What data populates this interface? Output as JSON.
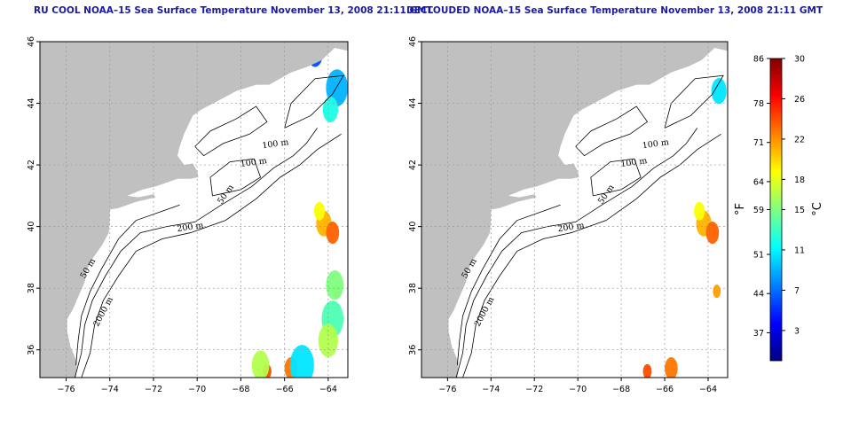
{
  "maps": [
    {
      "title": "RU COOL NOAA–15 Sea Surface Temperature November 13, 2008 21:11 GMT",
      "contour_labels": [
        "100 m",
        "100 m",
        "50 m",
        "200 m",
        "50 m",
        "2000 m"
      ]
    },
    {
      "title": "DECLOUDED NOAA–15 Sea Surface Temperature November 13, 2008 21:11 GMT",
      "contour_labels": [
        "100 m",
        "100 m",
        "50 m",
        "200 m",
        "50 m",
        "2000 m"
      ]
    }
  ],
  "chart_data": {
    "type": "heatmap",
    "x_ticks": [
      "−76",
      "−74",
      "−72",
      "−70",
      "−68",
      "−66",
      "−64"
    ],
    "y_ticks": [
      "36",
      "38",
      "40",
      "42",
      "44",
      "46"
    ],
    "xlim": [
      -77.2,
      -63.1
    ],
    "ylim": [
      35.1,
      46
    ],
    "grid": true,
    "colorbar": {
      "fahrenheit_ticks": [
        "86",
        "78",
        "71",
        "64",
        "59",
        "51",
        "44",
        "37"
      ],
      "celsius_ticks": [
        "30",
        "26",
        "22",
        "18",
        "15",
        "11",
        "7",
        "3"
      ],
      "fahrenheit_unit": "°F",
      "celsius_unit": "°C",
      "celsius_range": [
        0,
        30
      ],
      "colors": [
        "#000080",
        "#0000ff",
        "#0080ff",
        "#00ffff",
        "#80ff80",
        "#ffff00",
        "#ff8000",
        "#ff0000",
        "#800000"
      ]
    }
  }
}
